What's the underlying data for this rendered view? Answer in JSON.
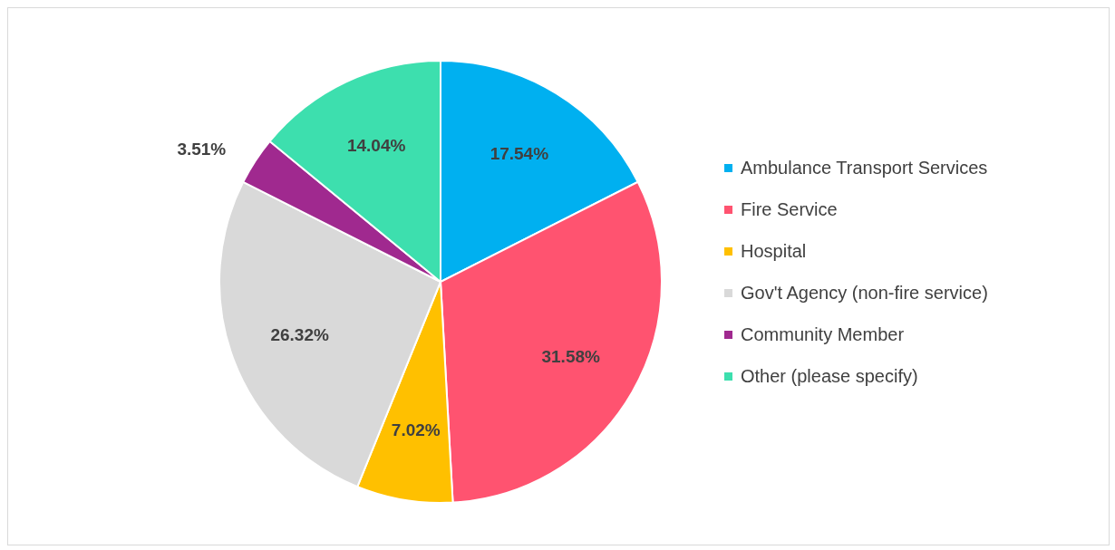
{
  "chart_data": {
    "type": "pie",
    "categories": [
      "Ambulance Transport Services",
      "Fire Service",
      "Hospital",
      "Gov't Agency (non-fire service)",
      "Community Member",
      "Other (please specify)"
    ],
    "values": [
      17.54,
      31.58,
      7.02,
      26.32,
      3.51,
      14.04
    ],
    "value_labels": [
      "17.54%",
      "31.58%",
      "7.02%",
      "26.32%",
      "3.51%",
      "14.04%"
    ],
    "colors": [
      "#00b0f0",
      "#ff5370",
      "#ffc000",
      "#d9d9d9",
      "#a0298f",
      "#3ddfae"
    ],
    "legend": "right"
  }
}
